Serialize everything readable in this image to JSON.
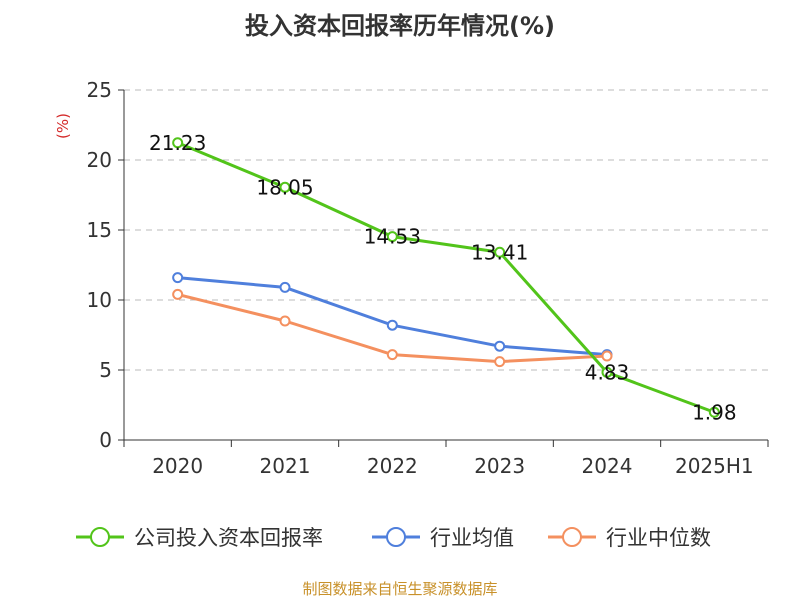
{
  "chart_data": {
    "type": "line",
    "title": "投入资本回报率历年情况(%)",
    "ylabel": "(%)",
    "xlabel": "",
    "categories": [
      "2020",
      "2021",
      "2022",
      "2023",
      "2024",
      "2025H1"
    ],
    "ylim": [
      0,
      25
    ],
    "yticks": [
      0,
      5,
      10,
      15,
      20,
      25
    ],
    "grid": true,
    "legend_position": "bottom",
    "series": [
      {
        "name": "公司投入资本回报率",
        "color": "#52c41a",
        "values": [
          21.23,
          18.05,
          14.53,
          13.41,
          4.83,
          1.98
        ],
        "labels": [
          "21.23",
          "18.05",
          "14.53",
          "13.41",
          "4.83",
          "1.98"
        ]
      },
      {
        "name": "行业均值",
        "color": "#4f7fdc",
        "values": [
          11.6,
          10.9,
          8.2,
          6.7,
          6.1,
          null
        ]
      },
      {
        "name": "行业中位数",
        "color": "#f4905f",
        "values": [
          10.4,
          8.5,
          6.1,
          5.6,
          6.0,
          null
        ]
      }
    ]
  },
  "footer": {
    "source": "制图数据来自恒生聚源数据库",
    "source_color": "#c8912a"
  },
  "colors": {
    "ylabel": "#d42a2a",
    "axis": "#333333",
    "grid": "#bbbbbb"
  }
}
